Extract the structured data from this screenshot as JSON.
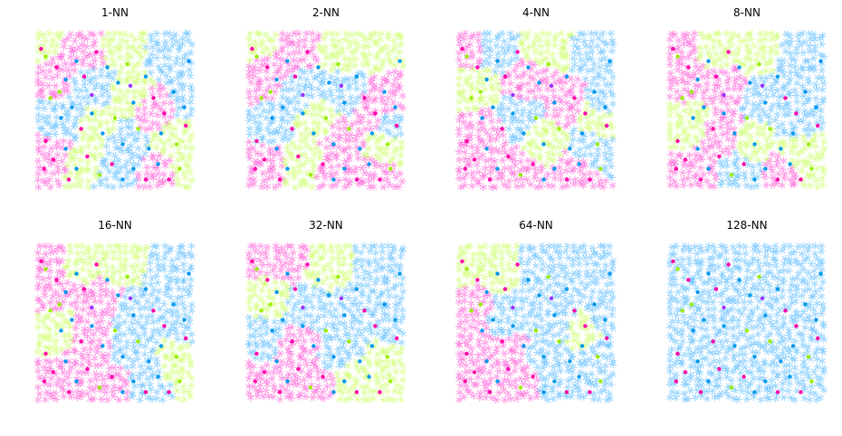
{
  "chart_data": {
    "type": "scatter",
    "grid": false,
    "axes_visible": false,
    "xlim": [
      0,
      1
    ],
    "ylim": [
      0,
      1
    ],
    "colors": {
      "class_magenta": "#ff33cc",
      "class_lime": "#bbff33",
      "class_sky": "#33aaff",
      "point_magenta": "#ff00aa",
      "point_lime": "#99ee00",
      "point_blue": "#0099ee",
      "point_purple": "#9933ff"
    },
    "panels": [
      {
        "title": "1-NN"
      },
      {
        "title": "2-NN"
      },
      {
        "title": "4-NN"
      },
      {
        "title": "8-NN"
      },
      {
        "title": "16-NN"
      },
      {
        "title": "32-NN"
      },
      {
        "title": "64-NN"
      },
      {
        "title": "128-NN"
      }
    ],
    "class_regions": [
      [
        [
          0.02,
          0.95,
          "L"
        ],
        [
          0.3,
          0.9,
          "M"
        ],
        [
          0.55,
          0.92,
          "L"
        ],
        [
          0.85,
          0.88,
          "S"
        ],
        [
          0.98,
          0.6,
          "S"
        ],
        [
          0.1,
          0.72,
          "M"
        ],
        [
          0.35,
          0.65,
          "S"
        ],
        [
          0.6,
          0.6,
          "L"
        ],
        [
          0.75,
          0.5,
          "M"
        ],
        [
          0.15,
          0.45,
          "S"
        ],
        [
          0.4,
          0.4,
          "L"
        ],
        [
          0.55,
          0.3,
          "S"
        ],
        [
          0.9,
          0.3,
          "L"
        ],
        [
          0.1,
          0.2,
          "M"
        ],
        [
          0.3,
          0.15,
          "L"
        ],
        [
          0.5,
          0.08,
          "S"
        ],
        [
          0.8,
          0.08,
          "M"
        ],
        [
          0.95,
          0.1,
          "L"
        ]
      ],
      [
        [
          0.05,
          0.95,
          "L"
        ],
        [
          0.3,
          0.92,
          "M"
        ],
        [
          0.6,
          0.9,
          "L"
        ],
        [
          0.9,
          0.9,
          "L"
        ],
        [
          0.95,
          0.6,
          "M"
        ],
        [
          0.1,
          0.72,
          "M"
        ],
        [
          0.35,
          0.6,
          "S"
        ],
        [
          0.62,
          0.62,
          "S"
        ],
        [
          0.8,
          0.5,
          "M"
        ],
        [
          0.15,
          0.4,
          "S"
        ],
        [
          0.45,
          0.45,
          "L"
        ],
        [
          0.6,
          0.3,
          "M"
        ],
        [
          0.9,
          0.25,
          "L"
        ],
        [
          0.1,
          0.15,
          "M"
        ],
        [
          0.35,
          0.15,
          "L"
        ],
        [
          0.55,
          0.1,
          "M"
        ],
        [
          0.85,
          0.08,
          "M"
        ],
        [
          0.95,
          0.4,
          "S"
        ]
      ],
      [
        [
          0.05,
          0.9,
          "M"
        ],
        [
          0.25,
          0.9,
          "S"
        ],
        [
          0.55,
          0.92,
          "L"
        ],
        [
          0.9,
          0.88,
          "S"
        ],
        [
          0.95,
          0.55,
          "S"
        ],
        [
          0.1,
          0.65,
          "L"
        ],
        [
          0.45,
          0.7,
          "M"
        ],
        [
          0.7,
          0.55,
          "M"
        ],
        [
          0.15,
          0.35,
          "M"
        ],
        [
          0.4,
          0.45,
          "S"
        ],
        [
          0.55,
          0.3,
          "L"
        ],
        [
          0.85,
          0.25,
          "S"
        ],
        [
          0.1,
          0.1,
          "M"
        ],
        [
          0.4,
          0.1,
          "M"
        ],
        [
          0.75,
          0.1,
          "M"
        ],
        [
          0.9,
          0.45,
          "L"
        ]
      ],
      [
        [
          0.05,
          0.92,
          "M"
        ],
        [
          0.3,
          0.92,
          "L"
        ],
        [
          0.55,
          0.9,
          "L"
        ],
        [
          0.85,
          0.85,
          "S"
        ],
        [
          0.95,
          0.55,
          "S"
        ],
        [
          0.1,
          0.7,
          "M"
        ],
        [
          0.35,
          0.65,
          "M"
        ],
        [
          0.6,
          0.55,
          "S"
        ],
        [
          0.8,
          0.45,
          "S"
        ],
        [
          0.1,
          0.4,
          "L"
        ],
        [
          0.35,
          0.35,
          "M"
        ],
        [
          0.55,
          0.3,
          "L"
        ],
        [
          0.85,
          0.2,
          "L"
        ],
        [
          0.15,
          0.1,
          "M"
        ],
        [
          0.45,
          0.1,
          "S"
        ],
        [
          0.75,
          0.1,
          "M"
        ],
        [
          0.95,
          0.1,
          "L"
        ]
      ],
      [
        [
          0.05,
          0.95,
          "M"
        ],
        [
          0.3,
          0.9,
          "L"
        ],
        [
          0.55,
          0.9,
          "L"
        ],
        [
          0.85,
          0.85,
          "S"
        ],
        [
          0.95,
          0.55,
          "S"
        ],
        [
          0.1,
          0.7,
          "M"
        ],
        [
          0.4,
          0.65,
          "M"
        ],
        [
          0.65,
          0.55,
          "S"
        ],
        [
          0.1,
          0.45,
          "L"
        ],
        [
          0.35,
          0.4,
          "M"
        ],
        [
          0.6,
          0.35,
          "S"
        ],
        [
          0.9,
          0.2,
          "L"
        ],
        [
          0.15,
          0.15,
          "M"
        ],
        [
          0.45,
          0.1,
          "M"
        ],
        [
          0.75,
          0.12,
          "S"
        ]
      ],
      [
        [
          0.05,
          0.95,
          "M"
        ],
        [
          0.25,
          0.9,
          "M"
        ],
        [
          0.5,
          0.88,
          "L"
        ],
        [
          0.85,
          0.88,
          "S"
        ],
        [
          0.95,
          0.55,
          "S"
        ],
        [
          0.15,
          0.65,
          "L"
        ],
        [
          0.35,
          0.6,
          "S"
        ],
        [
          0.65,
          0.55,
          "S"
        ],
        [
          0.1,
          0.4,
          "S"
        ],
        [
          0.3,
          0.35,
          "M"
        ],
        [
          0.6,
          0.3,
          "S"
        ],
        [
          0.85,
          0.2,
          "L"
        ],
        [
          0.1,
          0.1,
          "M"
        ],
        [
          0.4,
          0.1,
          "M"
        ],
        [
          0.7,
          0.15,
          "L"
        ]
      ],
      [
        [
          0.05,
          0.9,
          "L"
        ],
        [
          0.25,
          0.85,
          "L"
        ],
        [
          0.55,
          0.85,
          "S"
        ],
        [
          0.85,
          0.85,
          "S"
        ],
        [
          0.95,
          0.55,
          "S"
        ],
        [
          0.1,
          0.6,
          "M"
        ],
        [
          0.3,
          0.55,
          "S"
        ],
        [
          0.65,
          0.5,
          "S"
        ],
        [
          0.8,
          0.45,
          "L"
        ],
        [
          0.1,
          0.35,
          "M"
        ],
        [
          0.3,
          0.3,
          "M"
        ],
        [
          0.6,
          0.3,
          "S"
        ],
        [
          0.9,
          0.25,
          "S"
        ],
        [
          0.1,
          0.1,
          "M"
        ],
        [
          0.35,
          0.12,
          "M"
        ],
        [
          0.7,
          0.1,
          "S"
        ]
      ],
      [
        [
          0.1,
          0.9,
          "S"
        ],
        [
          0.5,
          0.85,
          "S"
        ],
        [
          0.9,
          0.85,
          "S"
        ],
        [
          0.1,
          0.5,
          "S"
        ],
        [
          0.5,
          0.5,
          "S"
        ],
        [
          0.9,
          0.5,
          "S"
        ],
        [
          0.1,
          0.1,
          "S"
        ],
        [
          0.5,
          0.1,
          "S"
        ],
        [
          0.9,
          0.1,
          "S"
        ]
      ]
    ],
    "training_points": [
      [
        0.02,
        0.9,
        "M"
      ],
      [
        0.05,
        0.85,
        "L"
      ],
      [
        0.12,
        0.78,
        "M"
      ],
      [
        0.18,
        0.7,
        "S"
      ],
      [
        0.25,
        0.82,
        "S"
      ],
      [
        0.3,
        0.72,
        "M"
      ],
      [
        0.38,
        0.88,
        "M"
      ],
      [
        0.45,
        0.78,
        "S"
      ],
      [
        0.52,
        0.68,
        "S"
      ],
      [
        0.58,
        0.8,
        "L"
      ],
      [
        0.62,
        0.55,
        "S"
      ],
      [
        0.7,
        0.72,
        "S"
      ],
      [
        0.75,
        0.58,
        "M"
      ],
      [
        0.82,
        0.48,
        "M"
      ],
      [
        0.88,
        0.62,
        "S"
      ],
      [
        0.95,
        0.52,
        "S"
      ],
      [
        0.98,
        0.82,
        "S"
      ],
      [
        0.08,
        0.58,
        "L"
      ],
      [
        0.15,
        0.45,
        "S"
      ],
      [
        0.22,
        0.52,
        "S"
      ],
      [
        0.28,
        0.38,
        "M"
      ],
      [
        0.35,
        0.48,
        "S"
      ],
      [
        0.42,
        0.35,
        "S"
      ],
      [
        0.5,
        0.45,
        "L"
      ],
      [
        0.55,
        0.28,
        "S"
      ],
      [
        0.65,
        0.38,
        "L"
      ],
      [
        0.72,
        0.25,
        "S"
      ],
      [
        0.8,
        0.35,
        "S"
      ],
      [
        0.9,
        0.28,
        "L"
      ],
      [
        0.96,
        0.4,
        "M"
      ],
      [
        0.05,
        0.3,
        "M"
      ],
      [
        0.1,
        0.18,
        "M"
      ],
      [
        0.18,
        0.25,
        "S"
      ],
      [
        0.25,
        0.12,
        "S"
      ],
      [
        0.32,
        0.2,
        "M"
      ],
      [
        0.4,
        0.08,
        "L"
      ],
      [
        0.48,
        0.15,
        "M"
      ],
      [
        0.55,
        0.05,
        "S"
      ],
      [
        0.62,
        0.12,
        "S"
      ],
      [
        0.7,
        0.05,
        "M"
      ],
      [
        0.78,
        0.15,
        "S"
      ],
      [
        0.85,
        0.05,
        "M"
      ],
      [
        0.92,
        0.12,
        "L"
      ],
      [
        0.04,
        0.12,
        "M"
      ],
      [
        0.2,
        0.05,
        "M"
      ],
      [
        0.35,
        0.6,
        "P"
      ],
      [
        0.6,
        0.66,
        "P"
      ],
      [
        0.14,
        0.62,
        "L"
      ]
    ]
  }
}
